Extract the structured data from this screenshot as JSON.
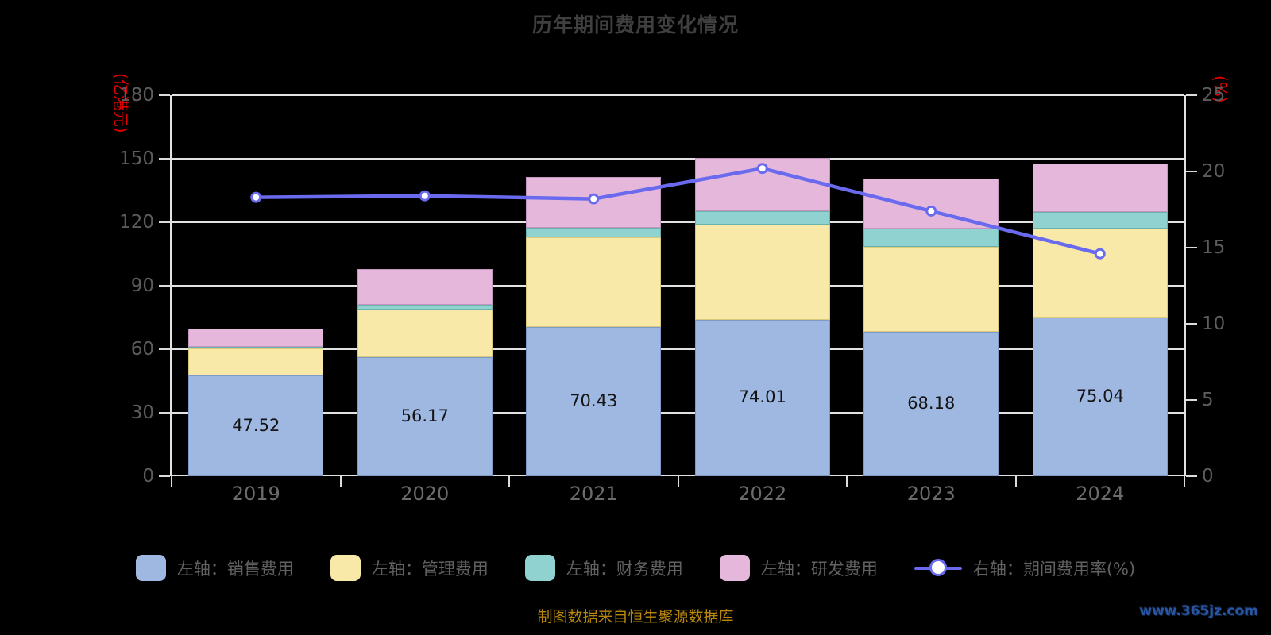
{
  "title": "历年期间费用变化情况",
  "source_note": "制图数据来自恒生聚源数据库",
  "watermark": "www.365jz.com",
  "chart_data": {
    "type": "bar",
    "stacked": true,
    "grid": true,
    "legend_position": "bottom",
    "categories": [
      "2019",
      "2020",
      "2021",
      "2022",
      "2023",
      "2024"
    ],
    "left_axis": {
      "unit": "(亿港元)",
      "unit_color": "#e60000",
      "min": 0,
      "max": 180,
      "ticks": [
        180,
        150,
        120,
        90,
        60,
        30,
        0
      ]
    },
    "right_axis": {
      "unit": "(%)",
      "unit_color": "#e60000",
      "min": 0,
      "max": 25,
      "ticks": [
        25,
        20,
        15,
        10,
        5,
        0
      ]
    },
    "series": [
      {
        "name": "左轴：销售费用",
        "type": "bar",
        "axis": "left",
        "color": "#9fb8e2",
        "border_color": "#7e9ac9",
        "values": [
          47.52,
          56.17,
          70.43,
          74.01,
          68.18,
          75.04
        ],
        "labeled": true
      },
      {
        "name": "左轴：管理费用",
        "type": "bar",
        "axis": "left",
        "color": "#f8e9a8",
        "border_color": "#d9c97d",
        "values": [
          12.8,
          22.6,
          42.5,
          44.9,
          40.2,
          42.0
        ]
      },
      {
        "name": "左轴：财务费用",
        "type": "bar",
        "axis": "left",
        "color": "#8fd2d0",
        "border_color": "#68b1ad",
        "values": [
          0.8,
          2.3,
          4.5,
          6.3,
          8.6,
          7.9
        ]
      },
      {
        "name": "左轴：研发费用",
        "type": "bar",
        "axis": "left",
        "color": "#e5b8db",
        "border_color": "#c495c0",
        "values": [
          8.6,
          16.9,
          24.0,
          25.1,
          23.6,
          22.9
        ]
      },
      {
        "name": "右轴：期间费用率(%)",
        "type": "line",
        "axis": "right",
        "color": "#6a6aee",
        "marker": "circle",
        "marker_fill": "#ffffff",
        "values": [
          18.3,
          18.4,
          18.2,
          20.2,
          17.4,
          14.6
        ]
      }
    ],
    "bar_labels": [
      "47.52",
      "56.17",
      "70.43",
      "74.01",
      "68.18",
      "75.04"
    ]
  }
}
